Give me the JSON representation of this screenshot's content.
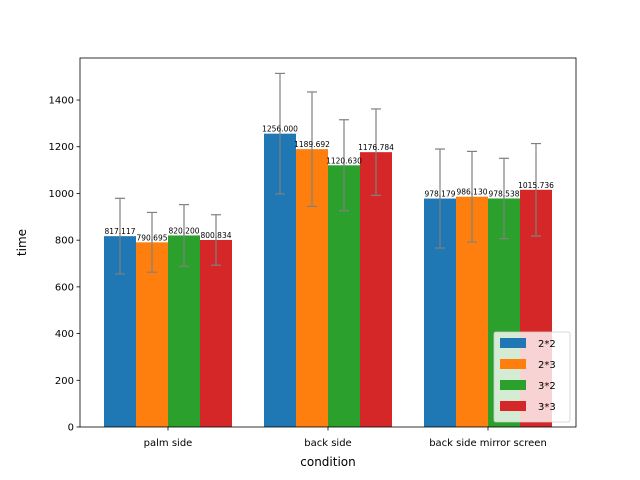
{
  "chart_data": {
    "type": "bar",
    "title": "",
    "xlabel": "condition",
    "ylabel": "time",
    "categories": [
      "palm side",
      "back side",
      "back side mirror screen"
    ],
    "ylim": [
      0,
      1580
    ],
    "yticks": [
      0,
      200,
      400,
      600,
      800,
      1000,
      1200,
      1400
    ],
    "grid": false,
    "legend_position": "bottom-right",
    "error_bar_color": "#808080",
    "series": [
      {
        "name": "2*2",
        "color": "#1f77b4",
        "values": [
          817.117,
          1256.0,
          978.179
        ],
        "labels": [
          "817.117",
          "1256.000",
          "978.179"
        ],
        "errors": [
          162,
          258,
          212
        ]
      },
      {
        "name": "2*3",
        "color": "#ff7f0e",
        "values": [
          790.695,
          1189.692,
          986.13
        ],
        "labels": [
          "790.695",
          "1189.692",
          "986.130"
        ],
        "errors": [
          128,
          245,
          194
        ]
      },
      {
        "name": "3*2",
        "color": "#2ca02c",
        "values": [
          820.2,
          1120.63,
          978.538
        ],
        "labels": [
          "820.200",
          "1120.630",
          "978.538"
        ],
        "errors": [
          132,
          195,
          172
        ]
      },
      {
        "name": "3*3",
        "color": "#d62728",
        "values": [
          800.834,
          1176.784,
          1015.736
        ],
        "labels": [
          "800.834",
          "1176.784",
          "1015.736"
        ],
        "errors": [
          108,
          185,
          198
        ]
      }
    ]
  }
}
